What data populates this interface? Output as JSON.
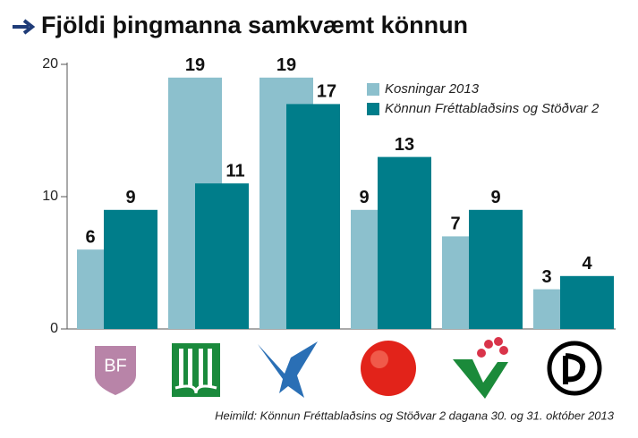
{
  "chart_data": {
    "type": "bar",
    "title": "Fjöldi þingmanna samkvæmt könnun",
    "categories": [
      "BF",
      null,
      null,
      null,
      null,
      null
    ],
    "series": [
      {
        "name": "Kosningar 2013",
        "color": "#8cc0cd",
        "values": [
          6,
          19,
          19,
          9,
          7,
          3
        ]
      },
      {
        "name": "Könnun Fréttablaðsins og Stöðvar 2",
        "color": "#007d8a",
        "values": [
          9,
          11,
          17,
          13,
          9,
          4
        ]
      }
    ],
    "ylim": [
      0,
      20
    ],
    "yticks": [
      0,
      10,
      20
    ],
    "legend": "upper right",
    "source": "Heimild: Könnun Fréttablaðsins og Stöðvar 2 dagana 30. og 31. október 2013"
  }
}
